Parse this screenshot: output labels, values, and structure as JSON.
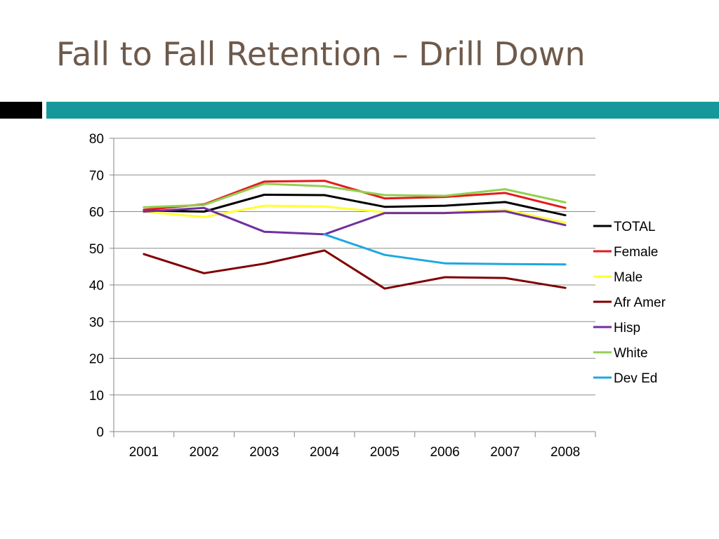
{
  "slide": {
    "title": "Fall to Fall Retention – Drill Down"
  },
  "colors": {
    "title_text": "#6e5a4b",
    "accent_bar_dark": "#000000",
    "accent_bar_teal": "#16989b"
  },
  "chart_data": {
    "type": "line",
    "title": "",
    "xlabel": "",
    "ylabel": "",
    "x": [
      "2001",
      "2002",
      "2003",
      "2004",
      "2005",
      "2006",
      "2007",
      "2008"
    ],
    "ylim": [
      0,
      80
    ],
    "yticks": [
      "0",
      "10",
      "20",
      "30",
      "40",
      "50",
      "60",
      "70",
      "80"
    ],
    "grid": "horizontal",
    "legend_position": "right",
    "series": [
      {
        "name": "TOTAL",
        "color": "#000000",
        "values": [
          60.3,
          60.0,
          64.6,
          64.5,
          61.3,
          61.6,
          62.6,
          59.0
        ]
      },
      {
        "name": "Female",
        "color": "#e41a1c",
        "values": [
          60.5,
          62.0,
          68.2,
          68.4,
          63.6,
          64.0,
          65.1,
          61.0
        ]
      },
      {
        "name": "Male",
        "color": "#ffff33",
        "values": [
          60.0,
          58.5,
          61.6,
          61.4,
          59.8,
          59.8,
          60.5,
          57.0
        ]
      },
      {
        "name": "Afr Amer",
        "color": "#800000",
        "values": [
          48.4,
          43.2,
          45.8,
          49.4,
          39.0,
          42.1,
          41.9,
          39.2
        ]
      },
      {
        "name": "Hisp",
        "color": "#7030a0",
        "values": [
          60.0,
          61.0,
          54.5,
          53.8,
          59.6,
          59.6,
          60.1,
          56.3
        ]
      },
      {
        "name": "White",
        "color": "#92d050",
        "values": [
          61.2,
          61.8,
          67.6,
          66.9,
          64.5,
          64.3,
          66.1,
          62.5
        ]
      },
      {
        "name": "Dev Ed",
        "color": "#1ea7e1",
        "values": [
          null,
          null,
          null,
          53.8,
          48.2,
          45.9,
          45.7,
          45.6
        ]
      }
    ]
  }
}
